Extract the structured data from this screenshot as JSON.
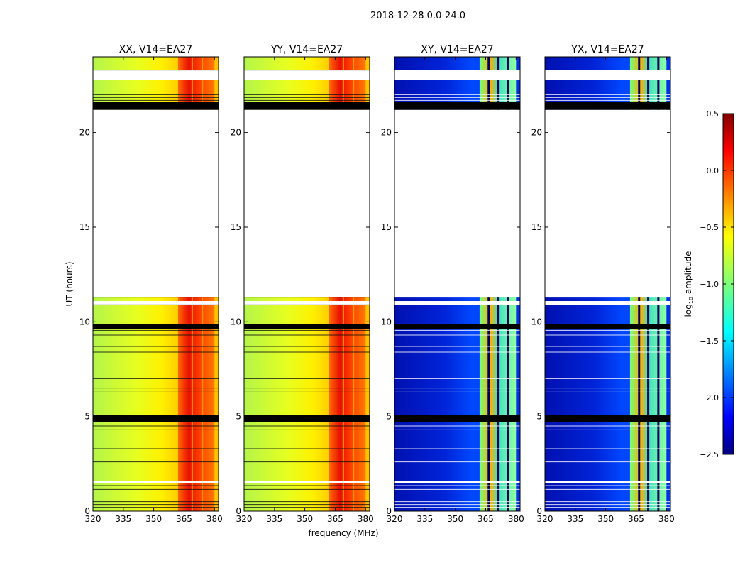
{
  "figure_title": "2018-12-28 0.0-24.0",
  "chart_data": {
    "type": "heatmap",
    "title": "2018-12-28 0.0-24.0",
    "xlabel": "frequency (MHz)",
    "ylabel": "UT (hours)",
    "xlim": [
      320,
      382
    ],
    "ylim": [
      0,
      24
    ],
    "x_ticks": [
      320,
      335,
      350,
      365,
      380
    ],
    "y_ticks": [
      0,
      5,
      10,
      15,
      20
    ],
    "panels": [
      {
        "title": "XX, V14=EA27",
        "kind": "parallel"
      },
      {
        "title": "YY, V14=EA27",
        "kind": "parallel"
      },
      {
        "title": "XY, V14=EA27",
        "kind": "cross"
      },
      {
        "title": "YX, V14=EA27",
        "kind": "cross"
      }
    ],
    "colorbar": {
      "label": "log10 amplitude",
      "range": [
        -2.5,
        0.5
      ],
      "ticks": [
        0.5,
        0.0,
        -0.5,
        -1.0,
        -1.5,
        -2.0,
        -2.5
      ],
      "tick_labels": [
        "0.5",
        "0.0",
        "−0.5",
        "−1.0",
        "−1.5",
        "−2.0",
        "−2.5"
      ],
      "colormap": "jet"
    },
    "no_data_ut_ranges": [
      [
        11.3,
        21.2
      ]
    ],
    "flagged_ut_bands": [
      [
        21.2,
        21.6
      ],
      [
        9.6,
        9.9
      ],
      [
        4.7,
        5.1
      ]
    ],
    "blank_ut_gaps": [
      [
        22.8,
        23.3
      ],
      [
        10.9,
        11.1
      ],
      [
        1.5,
        1.6
      ]
    ],
    "rfi_band_mhz": [
      362,
      380
    ]
  }
}
